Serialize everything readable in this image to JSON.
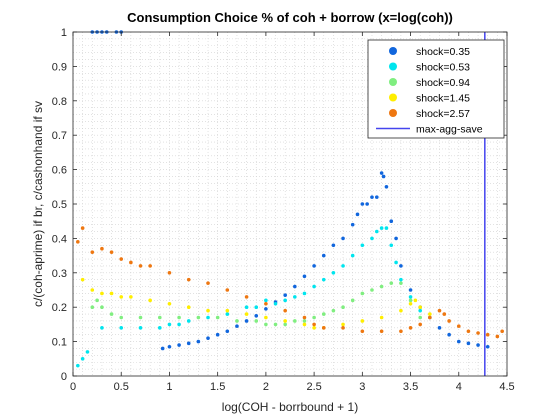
{
  "chart_data": {
    "type": "scatter",
    "title": "Consumption Choice % of coh + borrow (x=log(coh))",
    "xlabel": "log(COH - borrbound + 1)",
    "ylabel": "c/(coh-aprime) if br, c/cashonhand if sv",
    "xlim": [
      0,
      4.5
    ],
    "ylim": [
      0,
      1
    ],
    "xticks": [
      "0",
      "0.5",
      "1",
      "1.5",
      "2",
      "2.5",
      "3",
      "3.5",
      "4",
      "4.5"
    ],
    "yticks": [
      "0",
      "0.1",
      "0.2",
      "0.3",
      "0.4",
      "0.5",
      "0.6",
      "0.7",
      "0.8",
      "0.9",
      "1"
    ],
    "grid": "minor-dotted",
    "legend_position": "top-right",
    "series": [
      {
        "name": "shock=0.35",
        "color": "#1166dd",
        "points": [
          [
            0.2,
            1.0
          ],
          [
            0.25,
            1.0
          ],
          [
            0.3,
            1.0
          ],
          [
            0.35,
            1.0
          ],
          [
            0.45,
            1.0
          ],
          [
            0.5,
            1.0
          ],
          [
            0.93,
            0.08
          ],
          [
            1.0,
            0.085
          ],
          [
            1.1,
            0.09
          ],
          [
            1.2,
            0.095
          ],
          [
            1.3,
            0.1
          ],
          [
            1.4,
            0.11
          ],
          [
            1.5,
            0.12
          ],
          [
            1.6,
            0.13
          ],
          [
            1.7,
            0.145
          ],
          [
            1.8,
            0.16
          ],
          [
            1.9,
            0.175
          ],
          [
            2.0,
            0.195
          ],
          [
            2.1,
            0.215
          ],
          [
            2.2,
            0.235
          ],
          [
            2.3,
            0.26
          ],
          [
            2.4,
            0.29
          ],
          [
            2.5,
            0.32
          ],
          [
            2.6,
            0.35
          ],
          [
            2.7,
            0.38
          ],
          [
            2.8,
            0.4
          ],
          [
            2.9,
            0.44
          ],
          [
            2.95,
            0.47
          ],
          [
            3.0,
            0.5
          ],
          [
            3.05,
            0.5
          ],
          [
            3.1,
            0.52
          ],
          [
            3.15,
            0.52
          ],
          [
            3.2,
            0.59
          ],
          [
            3.22,
            0.58
          ],
          [
            3.25,
            0.55
          ],
          [
            3.3,
            0.45
          ],
          [
            3.35,
            0.4
          ],
          [
            3.4,
            0.32
          ],
          [
            3.5,
            0.25
          ],
          [
            3.6,
            0.2
          ],
          [
            3.7,
            0.17
          ],
          [
            3.8,
            0.14
          ],
          [
            3.9,
            0.12
          ],
          [
            4.0,
            0.1
          ],
          [
            4.1,
            0.095
          ],
          [
            4.2,
            0.09
          ],
          [
            4.3,
            0.085
          ]
        ]
      },
      {
        "name": "shock=0.53",
        "color": "#00e5ee",
        "points": [
          [
            0.05,
            0.03
          ],
          [
            0.1,
            0.05
          ],
          [
            0.15,
            0.07
          ],
          [
            0.3,
            0.14
          ],
          [
            0.5,
            0.14
          ],
          [
            0.7,
            0.14
          ],
          [
            0.9,
            0.14
          ],
          [
            1.0,
            0.15
          ],
          [
            1.1,
            0.15
          ],
          [
            1.2,
            0.16
          ],
          [
            1.4,
            0.17
          ],
          [
            1.6,
            0.18
          ],
          [
            1.8,
            0.2
          ],
          [
            1.9,
            0.2
          ],
          [
            2.0,
            0.22
          ],
          [
            2.1,
            0.21
          ],
          [
            2.2,
            0.22
          ],
          [
            2.3,
            0.23
          ],
          [
            2.4,
            0.24
          ],
          [
            2.5,
            0.26
          ],
          [
            2.6,
            0.28
          ],
          [
            2.7,
            0.3
          ],
          [
            2.8,
            0.32
          ],
          [
            2.9,
            0.35
          ],
          [
            3.0,
            0.38
          ],
          [
            3.1,
            0.4
          ],
          [
            3.15,
            0.42
          ],
          [
            3.2,
            0.43
          ],
          [
            3.25,
            0.43
          ],
          [
            3.3,
            0.38
          ],
          [
            3.35,
            0.33
          ],
          [
            3.4,
            0.28
          ],
          [
            3.5,
            0.23
          ],
          [
            3.6,
            0.19
          ]
        ]
      },
      {
        "name": "shock=0.94",
        "color": "#80ee80",
        "points": [
          [
            0.2,
            0.2
          ],
          [
            0.25,
            0.22
          ],
          [
            0.3,
            0.2
          ],
          [
            0.4,
            0.18
          ],
          [
            0.5,
            0.17
          ],
          [
            0.7,
            0.17
          ],
          [
            0.9,
            0.17
          ],
          [
            1.1,
            0.17
          ],
          [
            1.3,
            0.17
          ],
          [
            1.5,
            0.17
          ],
          [
            1.7,
            0.16
          ],
          [
            1.9,
            0.16
          ],
          [
            2.0,
            0.15
          ],
          [
            2.1,
            0.15
          ],
          [
            2.2,
            0.15
          ],
          [
            2.3,
            0.16
          ],
          [
            2.4,
            0.16
          ],
          [
            2.5,
            0.17
          ],
          [
            2.6,
            0.18
          ],
          [
            2.7,
            0.19
          ],
          [
            2.8,
            0.2
          ],
          [
            2.9,
            0.22
          ],
          [
            3.0,
            0.24
          ],
          [
            3.1,
            0.25
          ],
          [
            3.2,
            0.26
          ],
          [
            3.3,
            0.27
          ],
          [
            3.4,
            0.27
          ],
          [
            3.5,
            0.22
          ],
          [
            3.6,
            0.17
          ]
        ]
      },
      {
        "name": "shock=1.45",
        "color": "#ffee00",
        "points": [
          [
            0.1,
            0.28
          ],
          [
            0.2,
            0.25
          ],
          [
            0.3,
            0.24
          ],
          [
            0.4,
            0.24
          ],
          [
            0.5,
            0.23
          ],
          [
            0.6,
            0.23
          ],
          [
            0.8,
            0.22
          ],
          [
            1.0,
            0.21
          ],
          [
            1.2,
            0.2
          ],
          [
            1.4,
            0.19
          ],
          [
            1.6,
            0.19
          ],
          [
            1.8,
            0.18
          ],
          [
            2.0,
            0.17
          ],
          [
            2.2,
            0.16
          ],
          [
            2.4,
            0.15
          ],
          [
            2.5,
            0.14
          ],
          [
            2.6,
            0.14
          ],
          [
            2.8,
            0.15
          ],
          [
            3.0,
            0.16
          ],
          [
            3.2,
            0.17
          ],
          [
            3.4,
            0.19
          ],
          [
            3.5,
            0.21
          ],
          [
            3.55,
            0.22
          ],
          [
            3.6,
            0.2
          ],
          [
            3.7,
            0.18
          ]
        ]
      },
      {
        "name": "shock=2.57",
        "color": "#ee7711",
        "points": [
          [
            0.05,
            0.39
          ],
          [
            0.1,
            0.43
          ],
          [
            0.2,
            0.36
          ],
          [
            0.3,
            0.37
          ],
          [
            0.4,
            0.36
          ],
          [
            0.5,
            0.34
          ],
          [
            0.6,
            0.33
          ],
          [
            0.7,
            0.32
          ],
          [
            0.8,
            0.32
          ],
          [
            1.0,
            0.3
          ],
          [
            1.2,
            0.28
          ],
          [
            1.4,
            0.27
          ],
          [
            1.6,
            0.25
          ],
          [
            1.8,
            0.23
          ],
          [
            2.0,
            0.21
          ],
          [
            2.2,
            0.19
          ],
          [
            2.4,
            0.17
          ],
          [
            2.5,
            0.15
          ],
          [
            2.6,
            0.14
          ],
          [
            2.8,
            0.14
          ],
          [
            3.0,
            0.13
          ],
          [
            3.2,
            0.13
          ],
          [
            3.4,
            0.13
          ],
          [
            3.5,
            0.14
          ],
          [
            3.6,
            0.15
          ],
          [
            3.7,
            0.17
          ],
          [
            3.8,
            0.19
          ],
          [
            3.85,
            0.18
          ],
          [
            3.9,
            0.16
          ],
          [
            4.0,
            0.145
          ],
          [
            4.1,
            0.13
          ],
          [
            4.2,
            0.125
          ],
          [
            4.3,
            0.12
          ],
          [
            4.4,
            0.115
          ],
          [
            4.45,
            0.13
          ]
        ]
      }
    ],
    "reference_line": {
      "name": "max-agg-save",
      "color": "#4444ee",
      "x": 4.27
    }
  }
}
